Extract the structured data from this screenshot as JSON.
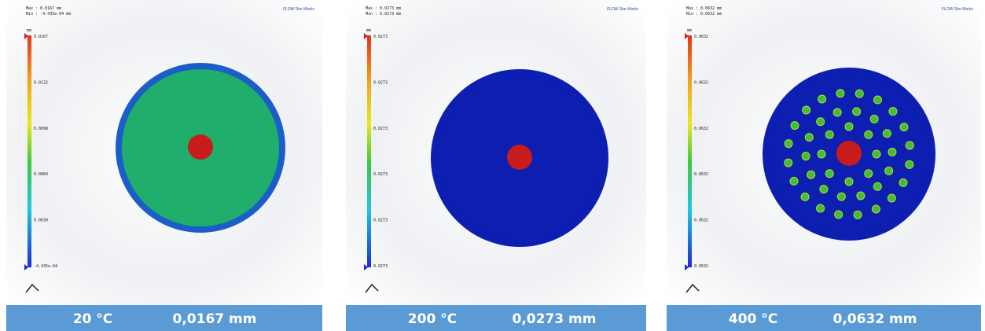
{
  "panels": [
    {
      "max": "Max : 0.0167 mm",
      "min": "Min : -4.435e-04 mm",
      "watermark": "FLOW Sim Works",
      "unit": "mm",
      "legend_labels": [
        "0.0167",
        "0.0132",
        "0.0098",
        "0.0064",
        "0.0030",
        "-4.435e-04"
      ],
      "temperature": "20 °C",
      "displacement": "0,0167 mm"
    },
    {
      "max": "Max : 0.0273 mm",
      "min": "Min : 0.0273 mm",
      "watermark": "FLOW Sim Works",
      "unit": "mm",
      "legend_labels": [
        "0.0273",
        "0.0273",
        "0.0273",
        "0.0273",
        "0.0273",
        "0.0273"
      ],
      "temperature": "200 °C",
      "displacement": "0,0273 mm"
    },
    {
      "max": "Max : 0.0632 mm",
      "min": "Min : 0.0632 mm",
      "watermark": "FLOW Sim Works",
      "unit": "mm",
      "legend_labels": [
        "0.0632",
        "0.0632",
        "0.0632",
        "0.0632",
        "0.0632",
        "0.0632"
      ],
      "temperature": "400 °C",
      "displacement": "0,0632 mm"
    }
  ]
}
